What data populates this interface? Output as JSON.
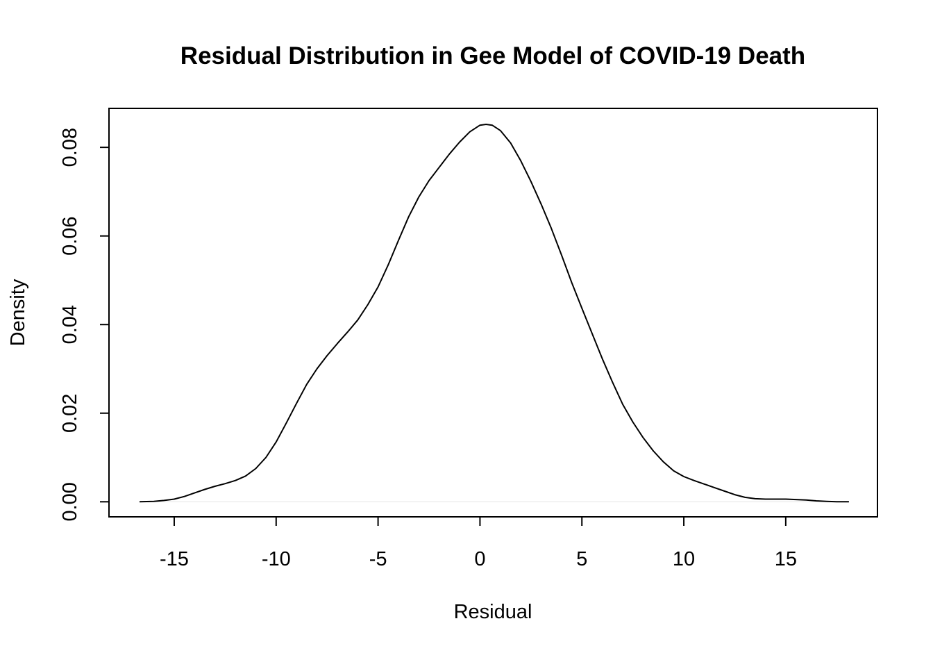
{
  "chart_data": {
    "type": "line",
    "title": "Residual Distribution in Gee Model of COVID-19 Death",
    "xlabel": "Residual",
    "ylabel": "Density",
    "xlim": [
      -18.2,
      19.5
    ],
    "ylim": [
      -0.0034,
      0.0888
    ],
    "x_ticks": [
      -15,
      -10,
      -5,
      0,
      5,
      10,
      15
    ],
    "x_tick_labels": [
      "-15",
      "-10",
      "-5",
      "0",
      "5",
      "10",
      "15"
    ],
    "y_ticks": [
      0.0,
      0.02,
      0.04,
      0.06,
      0.08
    ],
    "y_tick_labels": [
      "0.00",
      "0.02",
      "0.04",
      "0.06",
      "0.08"
    ],
    "grid": false,
    "legend": "none",
    "zero_line": true,
    "series": [
      {
        "color": "#000000",
        "x": [
          -16.7,
          -16.0,
          -15.5,
          -15.0,
          -14.5,
          -14.0,
          -13.5,
          -13.0,
          -12.5,
          -12.0,
          -11.5,
          -11.0,
          -10.5,
          -10.0,
          -9.5,
          -9.0,
          -8.5,
          -8.0,
          -7.5,
          -7.0,
          -6.5,
          -6.0,
          -5.5,
          -5.0,
          -4.5,
          -4.0,
          -3.5,
          -3.0,
          -2.5,
          -2.0,
          -1.5,
          -1.0,
          -0.5,
          0.0,
          0.3,
          0.6,
          1.0,
          1.5,
          2.0,
          2.5,
          3.0,
          3.5,
          4.0,
          4.5,
          5.0,
          5.5,
          6.0,
          6.5,
          7.0,
          7.5,
          8.0,
          8.5,
          9.0,
          9.5,
          10.0,
          10.5,
          11.0,
          11.5,
          12.0,
          12.5,
          13.0,
          13.5,
          14.0,
          14.5,
          15.0,
          15.5,
          16.0,
          16.5,
          17.0,
          17.5,
          18.1
        ],
        "y": [
          0.0,
          0.0001,
          0.0003,
          0.0006,
          0.0012,
          0.002,
          0.0028,
          0.0035,
          0.0041,
          0.0048,
          0.0058,
          0.0075,
          0.01,
          0.0135,
          0.0178,
          0.0222,
          0.0265,
          0.03,
          0.033,
          0.0357,
          0.0383,
          0.041,
          0.0445,
          0.0485,
          0.0535,
          0.059,
          0.0643,
          0.0688,
          0.0725,
          0.0755,
          0.0785,
          0.0812,
          0.0835,
          0.085,
          0.0852,
          0.085,
          0.0838,
          0.081,
          0.077,
          0.0723,
          0.0672,
          0.0617,
          0.0557,
          0.0495,
          0.0437,
          0.038,
          0.0323,
          0.027,
          0.022,
          0.018,
          0.0145,
          0.0115,
          0.009,
          0.007,
          0.0057,
          0.0048,
          0.004,
          0.0032,
          0.0024,
          0.0016,
          0.001,
          0.0007,
          0.0006,
          0.0006,
          0.0006,
          0.0005,
          0.0004,
          0.0002,
          0.0001,
          0.0,
          0.0
        ]
      }
    ]
  }
}
